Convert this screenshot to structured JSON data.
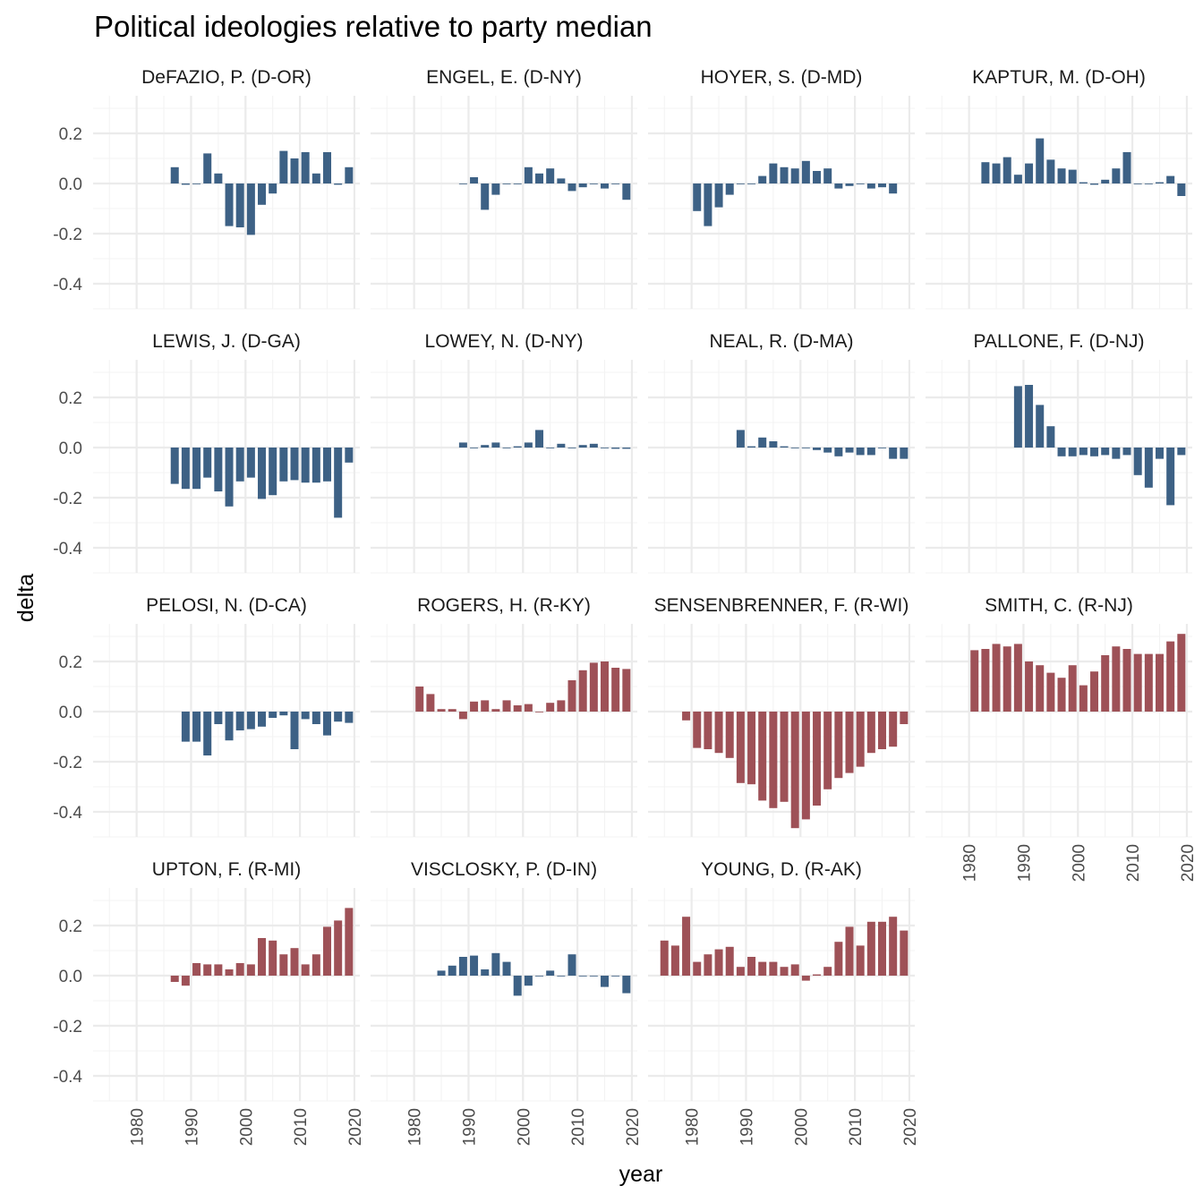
{
  "chart_data": {
    "type": "bar",
    "title": "Political ideologies relative to party median",
    "xlabel": "year",
    "ylabel": "delta",
    "xlim": [
      1972,
      2021
    ],
    "ylim": [
      -0.5,
      0.35
    ],
    "x_ticks": [
      "1980",
      "1990",
      "2000",
      "2010",
      "2020"
    ],
    "y_ticks": [
      {
        "value": 0.2,
        "label": "0.2"
      },
      {
        "value": 0.0,
        "label": "0.0"
      },
      {
        "value": -0.2,
        "label": "-0.2"
      },
      {
        "value": -0.4,
        "label": "-0.4"
      }
    ],
    "grid": true,
    "party_colors": {
      "D": "#3d6185",
      "R": "#9e5157"
    },
    "panels": [
      {
        "name": "DeFAZIO, P. (D-OR)",
        "party": "D",
        "x": [
          1987,
          1989,
          1991,
          1993,
          1995,
          1997,
          1999,
          2001,
          2003,
          2005,
          2007,
          2009,
          2011,
          2013,
          2015,
          2017,
          2019
        ],
        "values": [
          0.065,
          -0.005,
          0.0,
          0.12,
          0.04,
          -0.17,
          -0.175,
          -0.205,
          -0.085,
          -0.04,
          0.13,
          0.1,
          0.125,
          0.04,
          0.125,
          -0.005,
          0.065
        ]
      },
      {
        "name": "ENGEL, E. (D-NY)",
        "party": "D",
        "x": [
          1989,
          1991,
          1993,
          1995,
          1997,
          1999,
          2001,
          2003,
          2005,
          2007,
          2009,
          2011,
          2013,
          2015,
          2017,
          2019
        ],
        "values": [
          0.0,
          0.025,
          -0.105,
          -0.045,
          0.0,
          0.0,
          0.065,
          0.04,
          0.06,
          0.02,
          -0.03,
          -0.015,
          0.0,
          -0.02,
          0.0,
          -0.065
        ]
      },
      {
        "name": "HOYER, S. (D-MD)",
        "party": "D",
        "x": [
          1981,
          1983,
          1985,
          1987,
          1989,
          1991,
          1993,
          1995,
          1997,
          1999,
          2001,
          2003,
          2005,
          2007,
          2009,
          2011,
          2013,
          2015,
          2017
        ],
        "values": [
          -0.11,
          -0.17,
          -0.095,
          -0.045,
          0.0,
          0.0,
          0.03,
          0.08,
          0.065,
          0.06,
          0.09,
          0.05,
          0.06,
          -0.02,
          -0.01,
          0.0,
          -0.02,
          -0.015,
          -0.04
        ]
      },
      {
        "name": "KAPTUR, M. (D-OH)",
        "party": "D",
        "x": [
          1983,
          1985,
          1987,
          1989,
          1991,
          1993,
          1995,
          1997,
          1999,
          2001,
          2003,
          2005,
          2007,
          2009,
          2011,
          2013,
          2015,
          2017,
          2019
        ],
        "values": [
          0.085,
          0.08,
          0.105,
          0.035,
          0.08,
          0.18,
          0.095,
          0.06,
          0.055,
          0.005,
          -0.005,
          0.015,
          0.06,
          0.125,
          0.0,
          0.0,
          0.005,
          0.03,
          -0.05
        ]
      },
      {
        "name": "LEWIS, J. (D-GA)",
        "party": "D",
        "x": [
          1987,
          1989,
          1991,
          1993,
          1995,
          1997,
          1999,
          2001,
          2003,
          2005,
          2007,
          2009,
          2011,
          2013,
          2015,
          2017,
          2019
        ],
        "values": [
          -0.145,
          -0.165,
          -0.165,
          -0.12,
          -0.175,
          -0.235,
          -0.135,
          -0.12,
          -0.205,
          -0.19,
          -0.135,
          -0.13,
          -0.14,
          -0.14,
          -0.135,
          -0.28,
          -0.06
        ]
      },
      {
        "name": "LOWEY, N. (D-NY)",
        "party": "D",
        "x": [
          1989,
          1991,
          1993,
          1995,
          1997,
          1999,
          2001,
          2003,
          2005,
          2007,
          2009,
          2011,
          2013,
          2015,
          2017,
          2019
        ],
        "values": [
          0.02,
          0.0,
          0.01,
          0.02,
          0.0,
          0.005,
          0.02,
          0.07,
          0.0,
          0.015,
          0.0,
          0.01,
          0.015,
          0.0,
          -0.005,
          -0.005
        ]
      },
      {
        "name": "NEAL, R. (D-MA)",
        "party": "D",
        "x": [
          1989,
          1991,
          1993,
          1995,
          1997,
          1999,
          2001,
          2003,
          2005,
          2007,
          2009,
          2011,
          2013,
          2015,
          2017,
          2019
        ],
        "values": [
          0.07,
          0.005,
          0.04,
          0.025,
          0.005,
          0.0,
          0.0,
          -0.01,
          -0.02,
          -0.035,
          -0.02,
          -0.03,
          -0.03,
          0.0,
          -0.045,
          -0.045
        ]
      },
      {
        "name": "PALLONE, F. (D-NJ)",
        "party": "D",
        "x": [
          1989,
          1991,
          1993,
          1995,
          1997,
          1999,
          2001,
          2003,
          2005,
          2007,
          2009,
          2011,
          2013,
          2015,
          2017,
          2019
        ],
        "values": [
          0.245,
          0.25,
          0.17,
          0.085,
          -0.035,
          -0.035,
          -0.03,
          -0.035,
          -0.03,
          -0.045,
          -0.03,
          -0.11,
          -0.16,
          -0.045,
          -0.23,
          -0.03
        ]
      },
      {
        "name": "PELOSI, N. (D-CA)",
        "party": "D",
        "x": [
          1989,
          1991,
          1993,
          1995,
          1997,
          1999,
          2001,
          2003,
          2005,
          2007,
          2009,
          2011,
          2013,
          2015,
          2017,
          2019
        ],
        "values": [
          -0.12,
          -0.12,
          -0.175,
          -0.05,
          -0.115,
          -0.075,
          -0.07,
          -0.06,
          -0.025,
          -0.015,
          -0.15,
          -0.03,
          -0.05,
          -0.095,
          -0.04,
          -0.045
        ]
      },
      {
        "name": "ROGERS, H. (R-KY)",
        "party": "R",
        "x": [
          1981,
          1983,
          1985,
          1987,
          1989,
          1991,
          1993,
          1995,
          1997,
          1999,
          2001,
          2003,
          2005,
          2007,
          2009,
          2011,
          2013,
          2015,
          2017,
          2019
        ],
        "values": [
          0.1,
          0.07,
          0.01,
          0.01,
          -0.03,
          0.04,
          0.045,
          0.01,
          0.045,
          0.025,
          0.03,
          0.0,
          0.035,
          0.045,
          0.125,
          0.165,
          0.195,
          0.2,
          0.175,
          0.17
        ]
      },
      {
        "name": "SENSENBRENNER, F. (R-WI)",
        "party": "R",
        "x": [
          1979,
          1981,
          1983,
          1985,
          1987,
          1989,
          1991,
          1993,
          1995,
          1997,
          1999,
          2001,
          2003,
          2005,
          2007,
          2009,
          2011,
          2013,
          2015,
          2017,
          2019
        ],
        "values": [
          -0.035,
          -0.145,
          -0.15,
          -0.165,
          -0.185,
          -0.285,
          -0.29,
          -0.355,
          -0.385,
          -0.36,
          -0.465,
          -0.43,
          -0.375,
          -0.31,
          -0.265,
          -0.245,
          -0.22,
          -0.165,
          -0.15,
          -0.14,
          -0.05
        ]
      },
      {
        "name": "SMITH, C. (R-NJ)",
        "party": "R",
        "x": [
          1981,
          1983,
          1985,
          1987,
          1989,
          1991,
          1993,
          1995,
          1997,
          1999,
          2001,
          2003,
          2005,
          2007,
          2009,
          2011,
          2013,
          2015,
          2017,
          2019
        ],
        "values": [
          0.245,
          0.25,
          0.27,
          0.26,
          0.27,
          0.2,
          0.185,
          0.155,
          0.135,
          0.185,
          0.105,
          0.16,
          0.225,
          0.26,
          0.25,
          0.23,
          0.23,
          0.23,
          0.28,
          0.31
        ]
      },
      {
        "name": "UPTON, F. (R-MI)",
        "party": "R",
        "x": [
          1987,
          1989,
          1991,
          1993,
          1995,
          1997,
          1999,
          2001,
          2003,
          2005,
          2007,
          2009,
          2011,
          2013,
          2015,
          2017,
          2019
        ],
        "values": [
          -0.025,
          -0.04,
          0.05,
          0.045,
          0.045,
          0.025,
          0.05,
          0.045,
          0.15,
          0.14,
          0.085,
          0.11,
          0.045,
          0.085,
          0.195,
          0.22,
          0.27
        ]
      },
      {
        "name": "VISCLOSKY, P. (D-IN)",
        "party": "D",
        "x": [
          1985,
          1987,
          1989,
          1991,
          1993,
          1995,
          1997,
          1999,
          2001,
          2003,
          2005,
          2007,
          2009,
          2011,
          2013,
          2015,
          2017,
          2019
        ],
        "values": [
          0.02,
          0.04,
          0.075,
          0.08,
          0.025,
          0.09,
          0.055,
          -0.08,
          -0.04,
          0.0,
          0.02,
          0.0,
          0.085,
          0.0,
          0.0,
          -0.045,
          0.0,
          -0.07
        ]
      },
      {
        "name": "YOUNG, D. (R-AK)",
        "party": "R",
        "x": [
          1975,
          1977,
          1979,
          1981,
          1983,
          1985,
          1987,
          1989,
          1991,
          1993,
          1995,
          1997,
          1999,
          2001,
          2003,
          2005,
          2007,
          2009,
          2011,
          2013,
          2015,
          2017,
          2019
        ],
        "values": [
          0.14,
          0.12,
          0.235,
          0.055,
          0.085,
          0.105,
          0.115,
          0.035,
          0.075,
          0.055,
          0.055,
          0.035,
          0.045,
          -0.02,
          0.005,
          0.035,
          0.135,
          0.195,
          0.12,
          0.215,
          0.215,
          0.235,
          0.18
        ]
      }
    ]
  }
}
